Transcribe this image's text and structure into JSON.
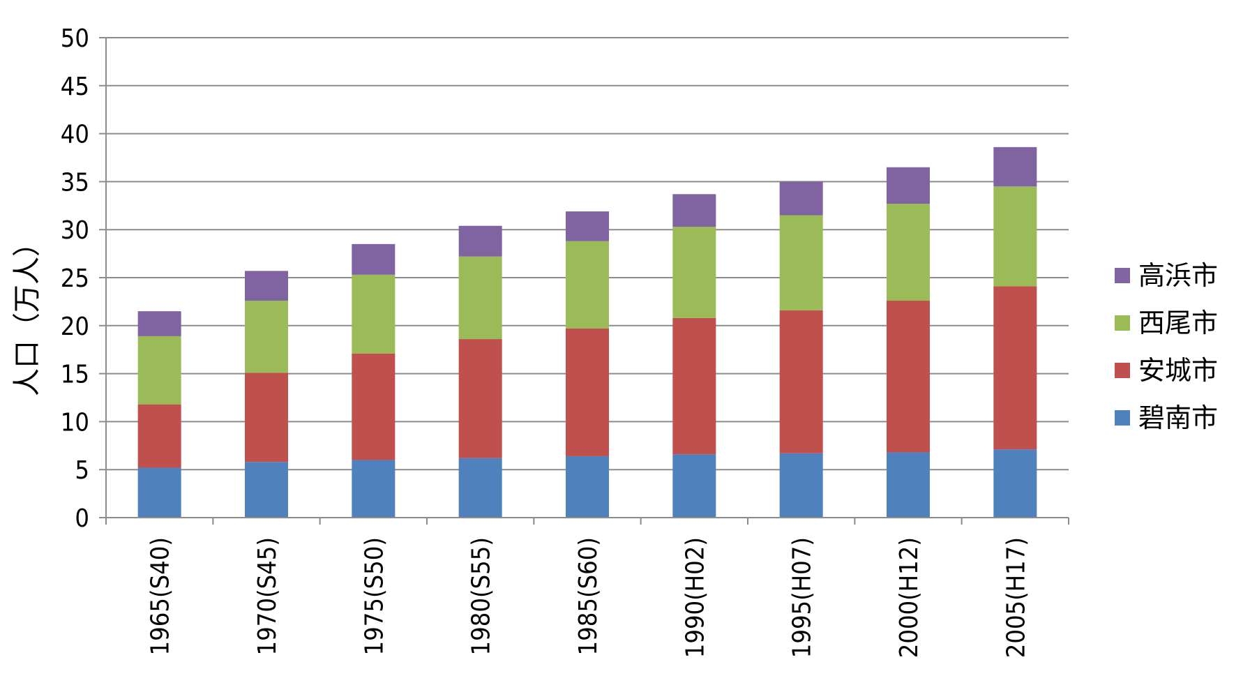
{
  "chart_data": {
    "type": "bar",
    "stacked": true,
    "categories": [
      "1965(S40)",
      "1970(S45)",
      "1975(S50)",
      "1980(S55)",
      "1985(S60)",
      "1990(H02)",
      "1995(H07)",
      "2000(H12)",
      "2005(H17)"
    ],
    "series": [
      {
        "name": "碧南市",
        "color": "#4f81bd",
        "values": [
          5.2,
          5.8,
          6.0,
          6.2,
          6.4,
          6.6,
          6.7,
          6.8,
          7.1
        ]
      },
      {
        "name": "安城市",
        "color": "#c0504d",
        "values": [
          6.6,
          9.3,
          11.1,
          12.4,
          13.3,
          14.2,
          14.9,
          15.8,
          17.0
        ]
      },
      {
        "name": "西尾市",
        "color": "#9bbb59",
        "values": [
          7.1,
          7.5,
          8.2,
          8.6,
          9.1,
          9.5,
          9.9,
          10.1,
          10.4
        ]
      },
      {
        "name": "高浜市",
        "color": "#8064a2",
        "values": [
          2.6,
          3.1,
          3.2,
          3.2,
          3.1,
          3.4,
          3.5,
          3.8,
          4.1
        ]
      }
    ],
    "ylabel": "人口（万人）",
    "ylim": [
      0,
      50
    ],
    "yticks": [
      0,
      5,
      10,
      15,
      20,
      25,
      30,
      35,
      40,
      45,
      50
    ],
    "grid": true,
    "legend": "right"
  }
}
